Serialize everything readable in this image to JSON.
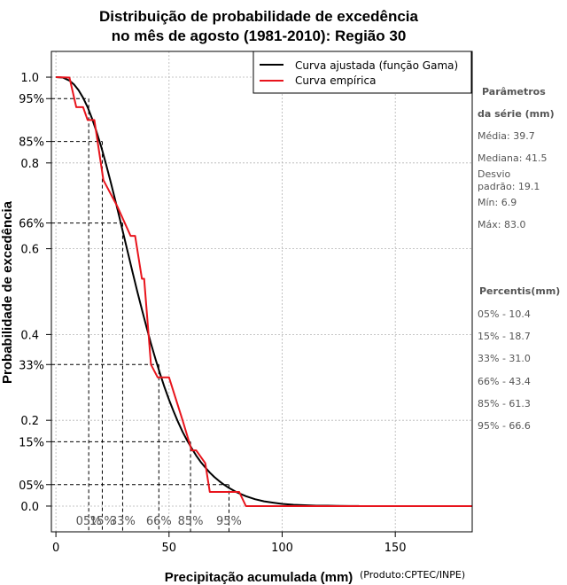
{
  "chart_data": {
    "type": "line",
    "title_line1": "Distribuição de probabilidade de excedência",
    "title_line2": "no mês de agosto (1981-2010): Região 30",
    "xlabel": "Precipitação acumulada (mm)",
    "credit": "(Produto:CPTEC/INPE)",
    "ylabel": "Probabilidade de excedência",
    "xlim": [
      -2,
      184
    ],
    "ylim": [
      -0.06,
      1.06
    ],
    "x_ticks": [
      "0",
      "50",
      "100",
      "150"
    ],
    "x_tick_values": [
      0,
      50,
      100,
      150
    ],
    "y_ticks": [
      "0.0",
      "0.2",
      "0.4",
      "0.6",
      "0.8",
      "1.0"
    ],
    "y_tick_values": [
      0,
      0.2,
      0.4,
      0.6,
      0.8,
      1.0
    ],
    "prob_levels": [
      {
        "label": "95%",
        "y": 0.95,
        "x": 14.5,
        "xlabel": "05%"
      },
      {
        "label": "85%",
        "y": 0.85,
        "x": 20.5,
        "xlabel": "15%"
      },
      {
        "label": "66%",
        "y": 0.66,
        "x": 29.5,
        "xlabel": "33%"
      },
      {
        "label": "33%",
        "y": 0.33,
        "x": 45.5,
        "xlabel": "66%"
      },
      {
        "label": "15%",
        "y": 0.15,
        "x": 59.5,
        "xlabel": "85%"
      },
      {
        "label": "05%",
        "y": 0.05,
        "x": 76.5,
        "xlabel": "95%"
      }
    ],
    "legend": [
      {
        "label": "Curva ajustada (função Gama)",
        "color": "#000000"
      },
      {
        "label": "Curva empírica",
        "color": "#e8141c"
      }
    ],
    "series": [
      {
        "name": "Curva ajustada (função Gama)",
        "color": "#000000",
        "x": [
          0,
          3,
          6,
          8,
          10,
          12,
          14,
          16,
          18,
          20,
          22,
          24,
          26,
          28,
          30,
          32,
          34,
          36,
          38,
          40,
          42,
          44,
          46,
          48,
          50,
          52,
          54,
          56,
          58,
          60,
          62,
          64,
          66,
          68,
          70,
          72,
          74,
          76,
          78,
          80,
          84,
          88,
          92,
          96,
          100,
          105,
          110,
          115,
          120,
          125,
          130,
          134
        ],
        "y": [
          1.0,
          0.999,
          0.992,
          0.983,
          0.97,
          0.952,
          0.93,
          0.903,
          0.872,
          0.838,
          0.8,
          0.76,
          0.718,
          0.675,
          0.631,
          0.587,
          0.543,
          0.5,
          0.458,
          0.418,
          0.379,
          0.343,
          0.309,
          0.277,
          0.248,
          0.221,
          0.196,
          0.173,
          0.153,
          0.135,
          0.118,
          0.103,
          0.09,
          0.078,
          0.068,
          0.059,
          0.051,
          0.044,
          0.038,
          0.032,
          0.023,
          0.016,
          0.011,
          0.008,
          0.005,
          0.003,
          0.002,
          0.001,
          0.001,
          0.0005,
          0.0002,
          0.0001
        ]
      },
      {
        "name": "Curva empírica",
        "color": "#e8141c",
        "x": [
          0,
          6,
          9,
          12,
          14,
          17,
          21,
          27,
          33,
          35,
          38,
          39,
          42,
          45,
          47,
          50,
          56,
          60,
          62,
          66,
          68,
          81,
          84,
          184
        ],
        "y": [
          1.0,
          0.999,
          0.93,
          0.93,
          0.9,
          0.9,
          0.76,
          0.7,
          0.63,
          0.63,
          0.53,
          0.53,
          0.33,
          0.3,
          0.3,
          0.3,
          0.2,
          0.13,
          0.13,
          0.1,
          0.033,
          0.033,
          0.0,
          0.0
        ]
      }
    ]
  },
  "side_panel": {
    "params_head1": "Parâmetros",
    "params_head2": "da série (mm)",
    "media": "Média: 39.7",
    "mediana": "Mediana: 41.5",
    "desvio1": "Desvio",
    "desvio2": "padrão: 19.1",
    "min": "Mín: 6.9",
    "max": "Máx: 83.0",
    "perc_head": "Percentis(mm)",
    "p05": "05% - 10.4",
    "p15": "15% - 18.7",
    "p33": "33% - 31.0",
    "p66": "66% - 43.4",
    "p85": "85% - 61.3",
    "p95": "95% - 66.6"
  }
}
